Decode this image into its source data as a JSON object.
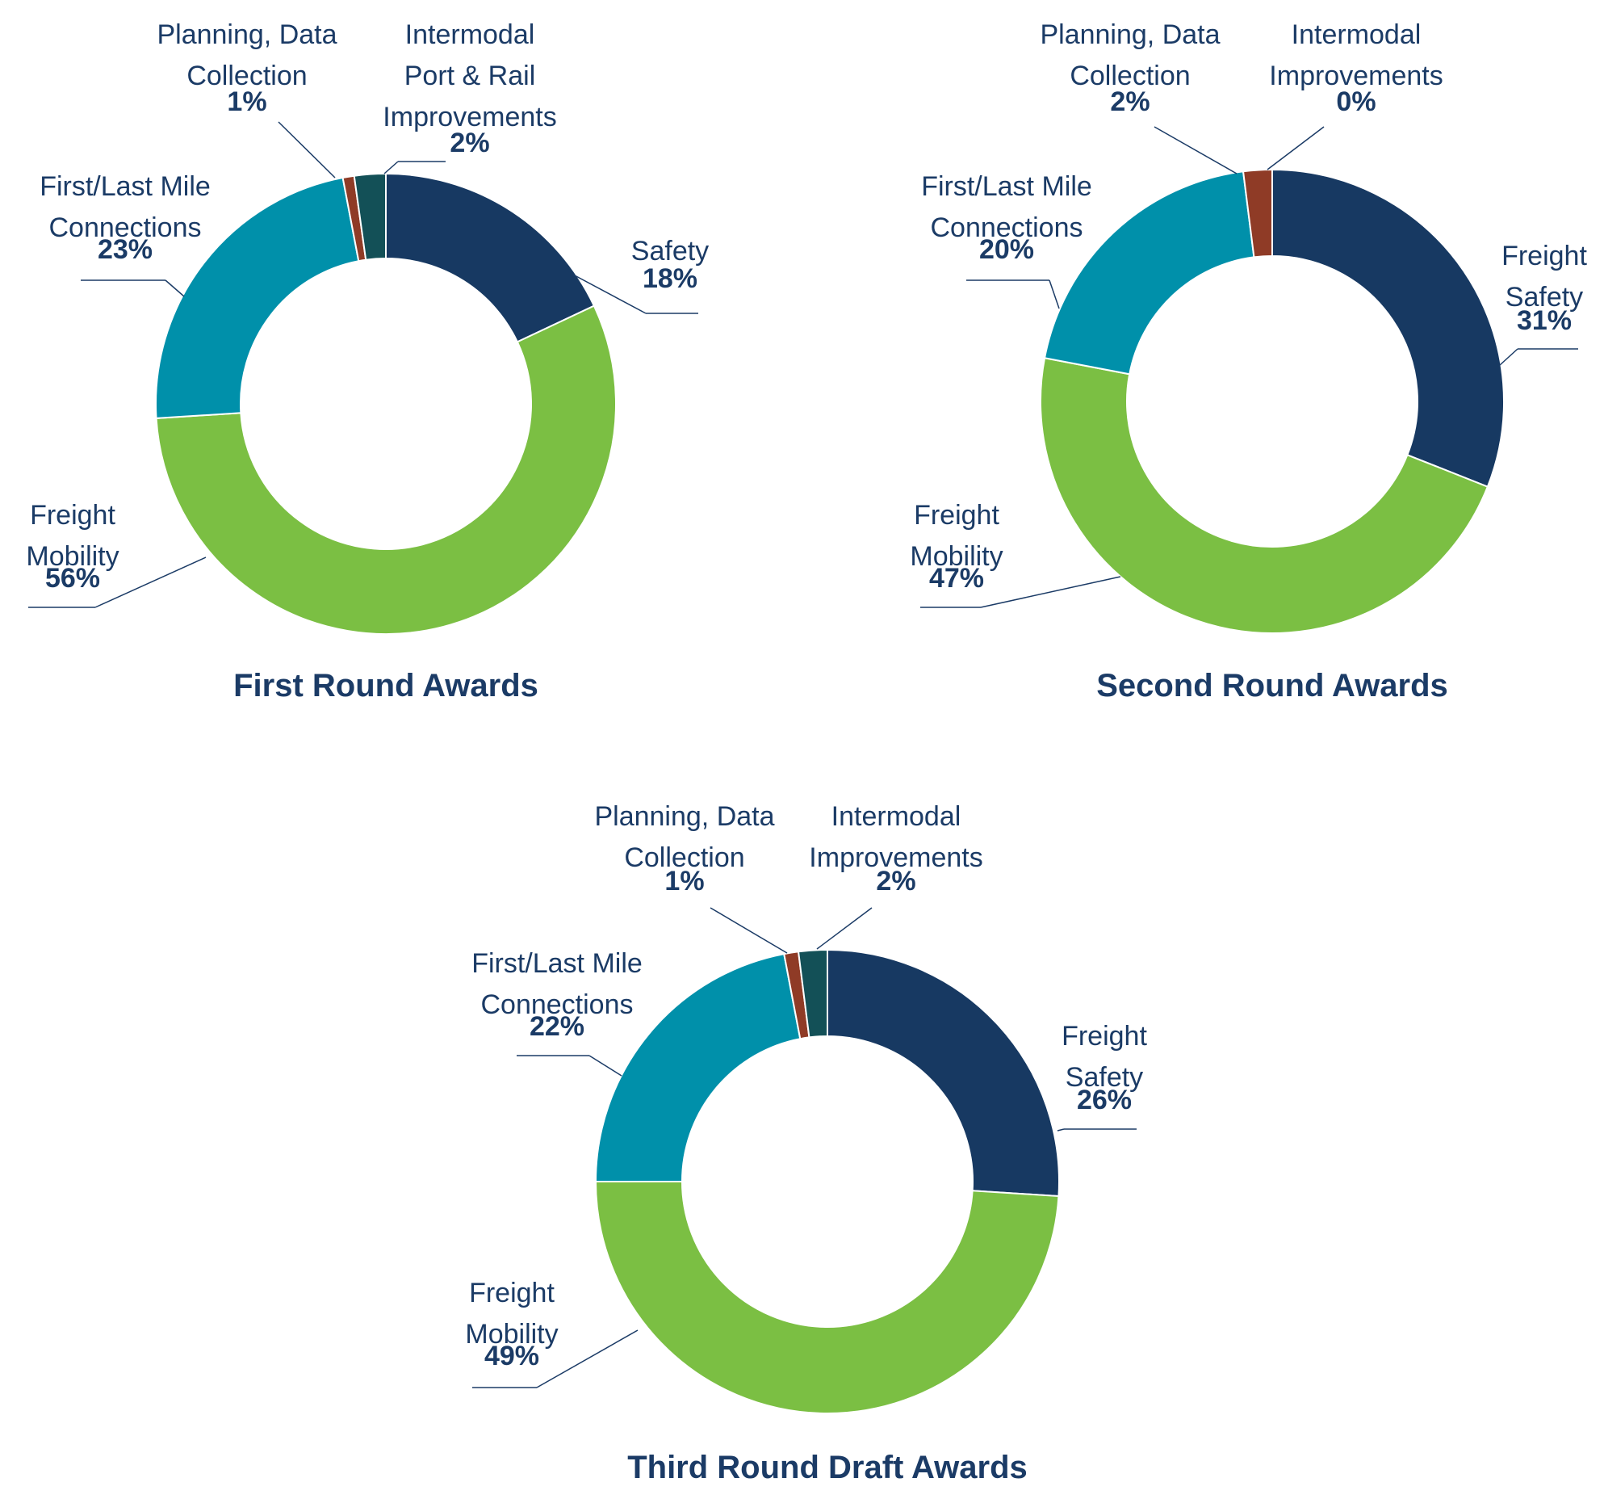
{
  "colors": {
    "text": "#1b3b66",
    "leader": "#1b3b66",
    "separator": "#ffffff",
    "safety": "#173962",
    "freight_mobility": "#7bbf43",
    "first_last_mile": "#0090aa",
    "planning": "#8f3b26",
    "intermodal": "#135057"
  },
  "chart_data": [
    {
      "type": "pie",
      "style": "donut",
      "title": "First Round Awards",
      "slices": [
        {
          "key": "safety",
          "label_lines": [
            "Safety"
          ],
          "value": 18,
          "value_label": "18%",
          "color": "#173962"
        },
        {
          "key": "freight_mobility",
          "label_lines": [
            "Freight",
            "Mobility"
          ],
          "value": 56,
          "value_label": "56%",
          "color": "#7bbf43"
        },
        {
          "key": "first_last_mile",
          "label_lines": [
            "First/Last Mile",
            "Connections"
          ],
          "value": 23,
          "value_label": "23%",
          "color": "#0090aa"
        },
        {
          "key": "planning",
          "label_lines": [
            "Planning, Data",
            "Collection"
          ],
          "value": 0.8,
          "value_label": "1%",
          "color": "#8f3b26"
        },
        {
          "key": "intermodal",
          "label_lines": [
            "Intermodal",
            "Port & Rail",
            "Improvements"
          ],
          "value": 2.2,
          "value_label": "2%",
          "color": "#135057"
        }
      ]
    },
    {
      "type": "pie",
      "style": "donut",
      "title": "Second Round Awards",
      "slices": [
        {
          "key": "safety",
          "label_lines": [
            "Freight",
            "Safety"
          ],
          "value": 31,
          "value_label": "31%",
          "color": "#173962"
        },
        {
          "key": "freight_mobility",
          "label_lines": [
            "Freight",
            "Mobility"
          ],
          "value": 47,
          "value_label": "47%",
          "color": "#7bbf43"
        },
        {
          "key": "first_last_mile",
          "label_lines": [
            "First/Last Mile",
            "Connections"
          ],
          "value": 20,
          "value_label": "20%",
          "color": "#0090aa"
        },
        {
          "key": "planning",
          "label_lines": [
            "Planning, Data",
            "Collection"
          ],
          "value": 2,
          "value_label": "2%",
          "color": "#8f3b26"
        },
        {
          "key": "intermodal",
          "label_lines": [
            "Intermodal",
            "Improvements"
          ],
          "value": 0,
          "value_label": "0%",
          "color": "#135057"
        }
      ]
    },
    {
      "type": "pie",
      "style": "donut",
      "title": "Third Round Draft Awards",
      "slices": [
        {
          "key": "safety",
          "label_lines": [
            "Freight",
            "Safety"
          ],
          "value": 26,
          "value_label": "26%",
          "color": "#173962"
        },
        {
          "key": "freight_mobility",
          "label_lines": [
            "Freight",
            "Mobility"
          ],
          "value": 49,
          "value_label": "49%",
          "color": "#7bbf43"
        },
        {
          "key": "first_last_mile",
          "label_lines": [
            "First/Last Mile",
            "Connections"
          ],
          "value": 22,
          "value_label": "22%",
          "color": "#0090aa"
        },
        {
          "key": "planning",
          "label_lines": [
            "Planning, Data",
            "Collection"
          ],
          "value": 1,
          "value_label": "1%",
          "color": "#8f3b26"
        },
        {
          "key": "intermodal",
          "label_lines": [
            "Intermodal",
            "Improvements"
          ],
          "value": 2,
          "value_label": "2%",
          "color": "#135057"
        }
      ]
    }
  ]
}
